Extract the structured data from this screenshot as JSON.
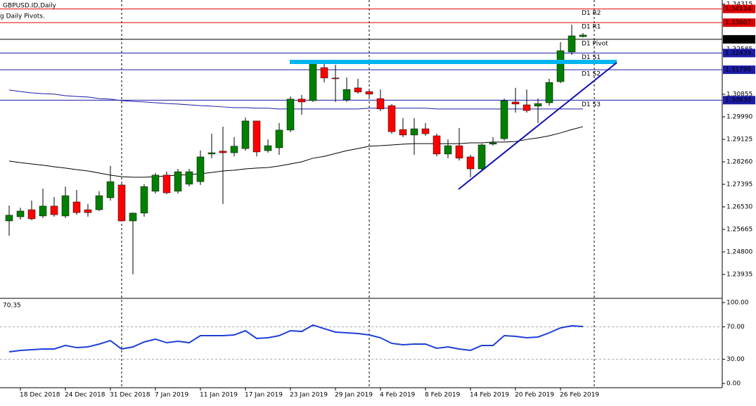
{
  "chart_data": {
    "type": "candlestick",
    "title": "GBPUSD.ID,Daily",
    "subtitle": "g Daily Pivots.",
    "categories": [
      null,
      "18 Dec 2018",
      null,
      null,
      null,
      "24 Dec 2018",
      null,
      null,
      null,
      "31 Dec 2018",
      null,
      null,
      null,
      "7 Jan 2019",
      null,
      null,
      null,
      "11 Jan 2019",
      null,
      null,
      null,
      "17 Jan 2019",
      null,
      null,
      null,
      "23 Jan 2019",
      null,
      null,
      null,
      "29 Jan 2019",
      null,
      null,
      null,
      "4 Feb 2019",
      null,
      null,
      null,
      "8 Feb 2019",
      null,
      null,
      null,
      "14 Feb 2019",
      null,
      null,
      null,
      "20 Feb 2019",
      null,
      null,
      null,
      "26 Feb 2019",
      null,
      null
    ],
    "open": [
      1.2599,
      1.2615,
      1.2642,
      1.2618,
      1.2656,
      1.2618,
      1.2672,
      1.2642,
      1.2642,
      1.2688,
      1.2737,
      1.2599,
      1.2629,
      1.2713,
      1.2775,
      1.2713,
      1.274,
      1.275,
      1.2856,
      1.2867,
      1.2861,
      1.2877,
      1.2983,
      1.2869,
      1.288,
      1.2948,
      1.3067,
      1.3061,
      1.3188,
      1.3148,
      1.3064,
      1.311,
      1.3096,
      1.3069,
      1.3042,
      1.295,
      1.2929,
      1.2953,
      1.2926,
      1.2856,
      1.2888,
      1.2845,
      1.2799,
      1.2894,
      1.2915,
      1.3056,
      1.3045,
      1.304,
      1.3053,
      1.3134,
      1.3248,
      1.3307
    ],
    "close": [
      1.2621,
      1.2637,
      1.2607,
      1.2656,
      1.2623,
      1.2696,
      1.2631,
      1.2631,
      1.2696,
      1.275,
      1.2599,
      1.2629,
      1.2731,
      1.2775,
      1.2707,
      1.2788,
      1.2788,
      1.2845,
      1.2861,
      1.2861,
      1.2886,
      1.2983,
      1.2864,
      1.2888,
      1.2948,
      1.3067,
      1.3056,
      1.3207,
      1.3148,
      1.3145,
      1.3104,
      1.3094,
      1.3086,
      1.3029,
      1.2942,
      1.2929,
      1.2953,
      1.2934,
      1.2856,
      1.2888,
      1.284,
      1.2799,
      1.2891,
      1.2899,
      1.3061,
      1.3048,
      1.3023,
      1.305,
      1.3131,
      1.3253,
      1.331,
      1.3313
    ],
    "high": [
      1.2658,
      1.265,
      1.2677,
      1.2723,
      1.2691,
      1.2731,
      1.2718,
      1.2664,
      1.2713,
      1.281,
      1.275,
      1.2631,
      1.274,
      1.2783,
      1.2788,
      1.2799,
      1.2799,
      1.287,
      1.2934,
      1.2961,
      1.2921,
      1.2996,
      1.2983,
      1.2912,
      1.2975,
      1.3077,
      1.3083,
      1.3218,
      1.3207,
      1.3199,
      1.315,
      1.3145,
      1.3102,
      1.3104,
      1.3048,
      1.2994,
      1.2994,
      1.2975,
      1.2934,
      1.2912,
      1.2956,
      1.2853,
      1.2896,
      1.2921,
      1.3069,
      1.311,
      1.3104,
      1.3069,
      1.3145,
      1.3286,
      1.3353,
      1.3321
    ],
    "low": [
      1.2542,
      1.2604,
      1.2602,
      1.261,
      1.2615,
      1.261,
      1.2623,
      1.2615,
      1.2637,
      1.2677,
      1.2596,
      1.2394,
      1.2615,
      1.2704,
      1.2702,
      1.2704,
      1.2731,
      1.2737,
      1.284,
      1.2664,
      1.2847,
      1.2869,
      1.2847,
      1.2861,
      1.2853,
      1.294,
      1.3007,
      1.3056,
      1.3131,
      1.3056,
      1.3056,
      1.3088,
      1.3069,
      1.3021,
      1.2934,
      1.2921,
      1.2853,
      1.2926,
      1.2847,
      1.284,
      1.2831,
      1.2767,
      1.2794,
      1.2888,
      1.2907,
      1.3015,
      1.3015,
      1.2975,
      1.3042,
      1.3128,
      1.3237,
      1.3304
    ],
    "up_color": "#008000",
    "down_color": "#ff0000",
    "ylim": [
      1.2307,
      1.34477
    ],
    "yticks": [
      1.34315,
      1.32585,
      1.30855,
      {
        "value": 1.2999,
        "label": "1.29990"
      },
      1.29125,
      {
        "value": 1.2826,
        "label": "1.28260"
      },
      1.27395,
      {
        "value": 1.2653,
        "label": "1.26530"
      },
      1.25665,
      {
        "value": 1.248,
        "label": "1.24800"
      },
      1.23935
    ],
    "lines": [
      {
        "color": "#1c1ca8",
        "values": [
          1.3102,
          1.3096,
          1.3091,
          1.3088,
          1.3086,
          1.308,
          1.3077,
          1.3075,
          1.3069,
          1.3067,
          1.3061,
          1.3058,
          1.3056,
          1.3053,
          1.305,
          1.3048,
          1.3045,
          1.3042,
          1.304,
          1.3037,
          1.3034,
          1.3034,
          1.3032,
          1.3032,
          1.3029,
          1.3029,
          1.3029,
          1.3029,
          1.3029,
          1.3029,
          1.3029,
          1.3029,
          1.3032,
          1.3032,
          1.3032,
          1.3032,
          1.3032,
          1.3032,
          1.3029,
          1.3029,
          1.3029,
          1.3029,
          1.3029,
          1.3029,
          1.3029,
          1.3029,
          1.3029,
          1.3029,
          1.3029,
          1.3029,
          1.3029,
          1.3029
        ]
      },
      {
        "color": "#000000",
        "values": [
          1.2829,
          1.2823,
          1.2818,
          1.2813,
          1.2807,
          1.2802,
          1.2796,
          1.2791,
          1.2783,
          1.2775,
          1.2769,
          1.2767,
          1.2767,
          1.2769,
          1.2772,
          1.2775,
          1.2777,
          1.278,
          1.2785,
          1.2791,
          1.2794,
          1.2799,
          1.2802,
          1.2804,
          1.281,
          1.2818,
          1.2826,
          1.284,
          1.2847,
          1.2858,
          1.2869,
          1.2877,
          1.2886,
          1.2888,
          1.2891,
          1.2894,
          1.2896,
          1.2896,
          1.2896,
          1.2896,
          1.2896,
          1.2899,
          1.2899,
          1.2902,
          1.2902,
          1.2904,
          1.2912,
          1.2918,
          1.2926,
          1.2937,
          1.295,
          1.2961
        ]
      }
    ],
    "pivots": [
      {
        "label": "D1 R2",
        "value": 1.34134,
        "color": "#e00000"
      },
      {
        "label": "D1 R1",
        "value": 1.33607,
        "color": "#e00000"
      },
      {
        "label": "D1 Pivot",
        "value": 1.32966,
        "color": "#000000"
      },
      {
        "label": "D1 S1",
        "value": 1.32439,
        "color": "#1c1ca8"
      },
      {
        "label": "D1 S2",
        "value": 1.31798,
        "color": "#1c1ca8"
      },
      {
        "label": "D1 S3",
        "value": 1.3063,
        "value_label": "1.30630",
        "color": "#1c1ca8"
      }
    ],
    "indicator": {
      "color": "#1e3fd8",
      "values": [
        39.1,
        40.9,
        41.7,
        42.6,
        42.6,
        47.0,
        44.3,
        45.2,
        48.7,
        53.0,
        42.6,
        45.2,
        51.3,
        54.8,
        50.4,
        52.2,
        50.4,
        59.1,
        59.1,
        59.1,
        60.0,
        65.2,
        55.7,
        56.5,
        59.1,
        65.2,
        64.3,
        72.2,
        67.8,
        63.5,
        62.6,
        61.7,
        60.0,
        56.5,
        49.6,
        47.8,
        48.7,
        48.7,
        43.5,
        45.2,
        42.6,
        40.9,
        47.0,
        47.0,
        59.1,
        58.3,
        56.5,
        57.4,
        62.6,
        68.7,
        71.3,
        70.35
      ],
      "ylim": [
        0,
        100
      ],
      "yticks": [
        {
          "value": 100,
          "label": "100.00"
        },
        {
          "value": 70,
          "label": "70.00"
        },
        {
          "value": 30,
          "label": "30.00"
        },
        {
          "value": 0,
          "label": "0.00"
        }
      ],
      "levels": [
        70,
        30
      ]
    }
  }
}
